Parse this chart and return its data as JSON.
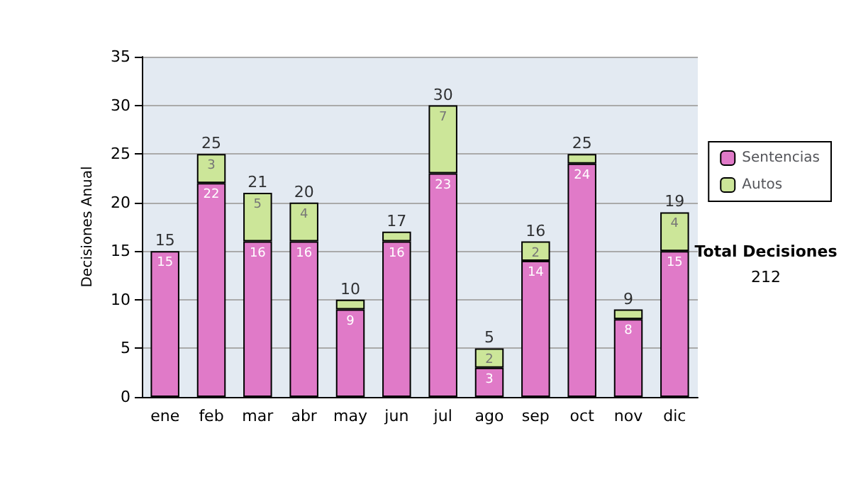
{
  "chart_data": {
    "type": "bar",
    "stacked": true,
    "ylabel": "Decisiones Anual",
    "categories": [
      "ene",
      "feb",
      "mar",
      "abr",
      "may",
      "jun",
      "jul",
      "ago",
      "sep",
      "oct",
      "nov",
      "dic"
    ],
    "series": [
      {
        "name": "Sentencias",
        "color": "#e07ac8",
        "values": [
          15,
          22,
          16,
          16,
          9,
          16,
          23,
          3,
          14,
          24,
          8,
          15
        ],
        "value_labels": [
          "15",
          "22",
          "16",
          "16",
          "9",
          "16",
          "23",
          "3",
          "14",
          "24",
          "8",
          "15"
        ]
      },
      {
        "name": "Autos",
        "color": "#cce699",
        "values": [
          0,
          3,
          5,
          4,
          1,
          1,
          7,
          2,
          2,
          1,
          1,
          4
        ],
        "value_labels": [
          null,
          "3",
          "5",
          "4",
          null,
          null,
          "7",
          "2",
          "2",
          null,
          null,
          "4"
        ]
      }
    ],
    "totals": [
      "15",
      "25",
      "21",
      "20",
      "10",
      "17",
      "30",
      "5",
      "16",
      "25",
      "9",
      "19"
    ],
    "ylim": [
      0,
      35
    ],
    "yticks": [
      0,
      5,
      10,
      15,
      20,
      25,
      30,
      35
    ],
    "grid": "y",
    "legend": "right",
    "annotations": [
      "Total Decisiones",
      "212"
    ]
  }
}
